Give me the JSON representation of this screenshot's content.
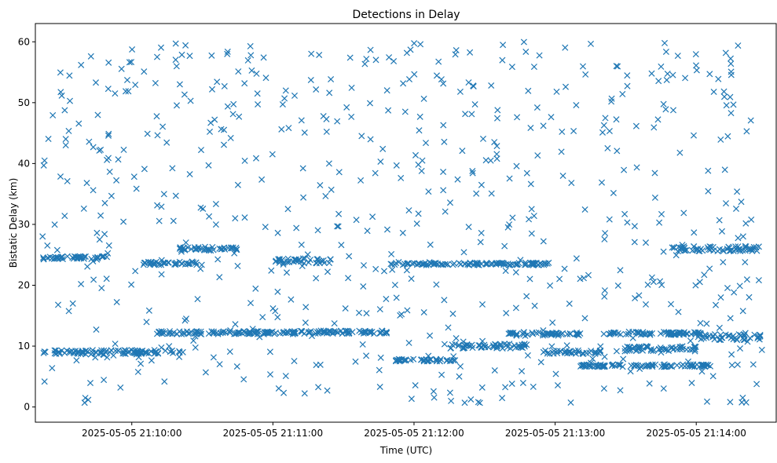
{
  "chart_data": {
    "type": "scatter",
    "title": "Detections in Delay",
    "xlabel": "Time (UTC)",
    "ylabel": "Bistatic Delay (km)",
    "x_tick_labels": [
      "2025-05-05 21:10:00",
      "2025-05-05 21:11:00",
      "2025-05-05 21:12:00",
      "2025-05-05 21:13:00",
      "2025-05-05 21:14:00"
    ],
    "x_tick_seconds": [
      0,
      60,
      120,
      180,
      240
    ],
    "xlim_seconds": [
      -41,
      274
    ],
    "y_ticks": [
      0,
      10,
      20,
      30,
      40,
      50,
      60
    ],
    "ylim": [
      -2.5,
      63
    ],
    "marker": "x",
    "color": "#1f77b4",
    "grid": false,
    "bands": [
      {
        "y": 9.0,
        "x_start": -38,
        "x_end": 22,
        "jitter": 0.35
      },
      {
        "y": 12.2,
        "x_start": 10,
        "x_end": 70,
        "jitter": 0.25
      },
      {
        "y": 12.3,
        "x_start": 66,
        "x_end": 110,
        "jitter": 0.25
      },
      {
        "y": 23.5,
        "x_start": 110,
        "x_end": 178,
        "jitter": 0.2
      },
      {
        "y": 7.7,
        "x_start": 112,
        "x_end": 138,
        "jitter": 0.2
      },
      {
        "y": 10.0,
        "x_start": 135,
        "x_end": 168,
        "jitter": 0.4
      },
      {
        "y": 12.0,
        "x_start": 160,
        "x_end": 192,
        "jitter": 0.3
      },
      {
        "y": 9.0,
        "x_start": 175,
        "x_end": 200,
        "jitter": 0.3
      },
      {
        "y": 6.8,
        "x_start": 190,
        "x_end": 248,
        "jitter": 0.2
      },
      {
        "y": 12.1,
        "x_start": 200,
        "x_end": 242,
        "jitter": 0.25
      },
      {
        "y": 9.6,
        "x_start": 206,
        "x_end": 240,
        "jitter": 0.45
      },
      {
        "y": 26.0,
        "x_start": 228,
        "x_end": 268,
        "jitter": 0.4
      },
      {
        "y": 11.5,
        "x_start": 240,
        "x_end": 268,
        "jitter": 0.5
      },
      {
        "y": 24.5,
        "x_start": -38,
        "x_end": -10,
        "jitter": 0.3
      },
      {
        "y": 26.0,
        "x_start": 20,
        "x_end": 45,
        "jitter": 0.3
      },
      {
        "y": 23.6,
        "x_start": 5,
        "x_end": 30,
        "jitter": 0.3
      },
      {
        "y": 24.0,
        "x_start": 60,
        "x_end": 85,
        "jitter": 0.4
      }
    ],
    "scatter_count": 640,
    "x_range_seconds": [
      -38,
      268
    ],
    "y_range": [
      0.5,
      60
    ]
  }
}
